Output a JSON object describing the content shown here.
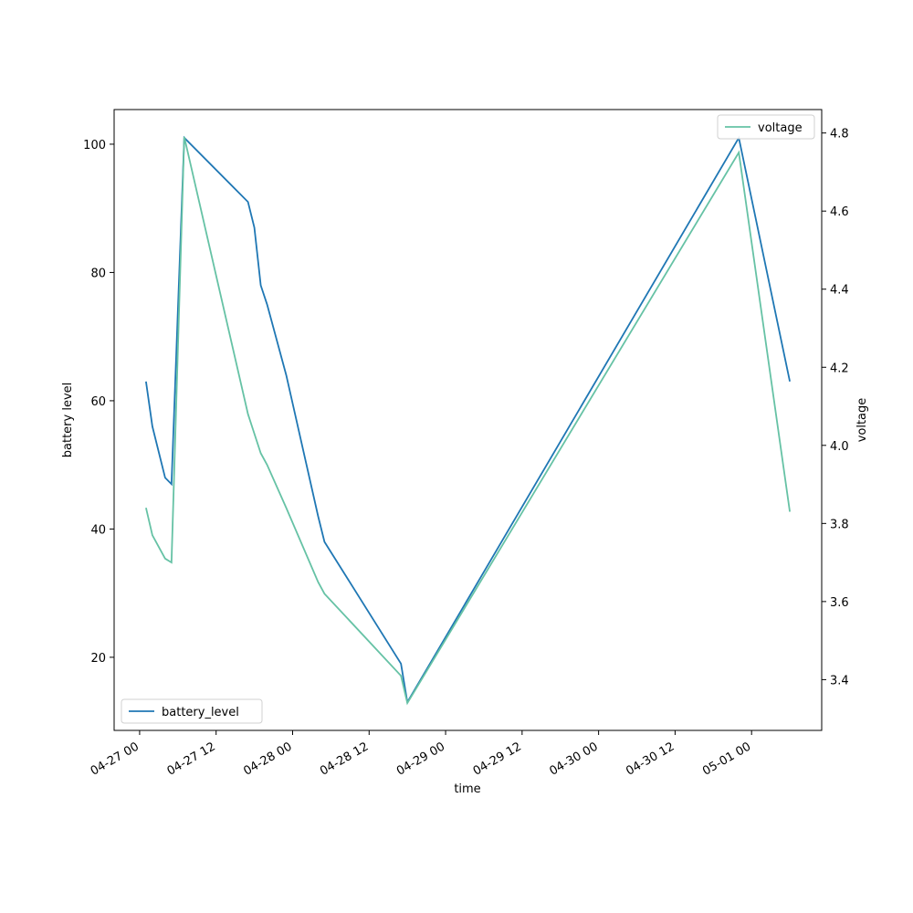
{
  "chart_data": {
    "type": "line",
    "xlabel": "time",
    "ylabel": "battery level",
    "y2label": "voltage",
    "x": [
      "04-27 01",
      "04-27 02",
      "04-27 04",
      "04-27 05",
      "04-27 07",
      "04-27 17",
      "04-27 18",
      "04-27 19",
      "04-27 20",
      "04-27 23",
      "04-28 04",
      "04-28 05",
      "04-28 17",
      "04-28 18",
      "04-30 22",
      "05-01 06"
    ],
    "xlim": [
      "04-26 20",
      "05-01 11"
    ],
    "xticks": [
      "04-27 00",
      "04-27 12",
      "04-28 00",
      "04-28 12",
      "04-29 00",
      "04-29 12",
      "04-30 00",
      "04-30 12",
      "05-01 00"
    ],
    "ylim": [
      8.6,
      105.4
    ],
    "yticks": [
      20,
      40,
      60,
      80,
      100
    ],
    "y2lim": [
      3.27,
      4.86
    ],
    "y2ticks": [
      3.4,
      3.6,
      3.8,
      {
        "value": 4,
        "label": "4.0"
      },
      4.2,
      4.4,
      4.6,
      4.8
    ],
    "grid": false,
    "series": [
      {
        "name": "battery_level",
        "color": "#1f77b4",
        "legend": "lower left",
        "values": [
          63,
          56,
          48,
          47,
          101,
          91,
          87,
          78,
          75,
          64,
          42,
          38,
          19,
          13,
          101,
          63
        ]
      },
      {
        "name": "voltage",
        "color": "#66c2a5",
        "axis": "y2",
        "legend": "upper right",
        "values": [
          3.84,
          3.77,
          3.71,
          3.7,
          4.79,
          4.08,
          4.03,
          3.98,
          3.95,
          3.84,
          3.65,
          3.62,
          3.41,
          3.34,
          4.75,
          3.83
        ]
      }
    ]
  }
}
